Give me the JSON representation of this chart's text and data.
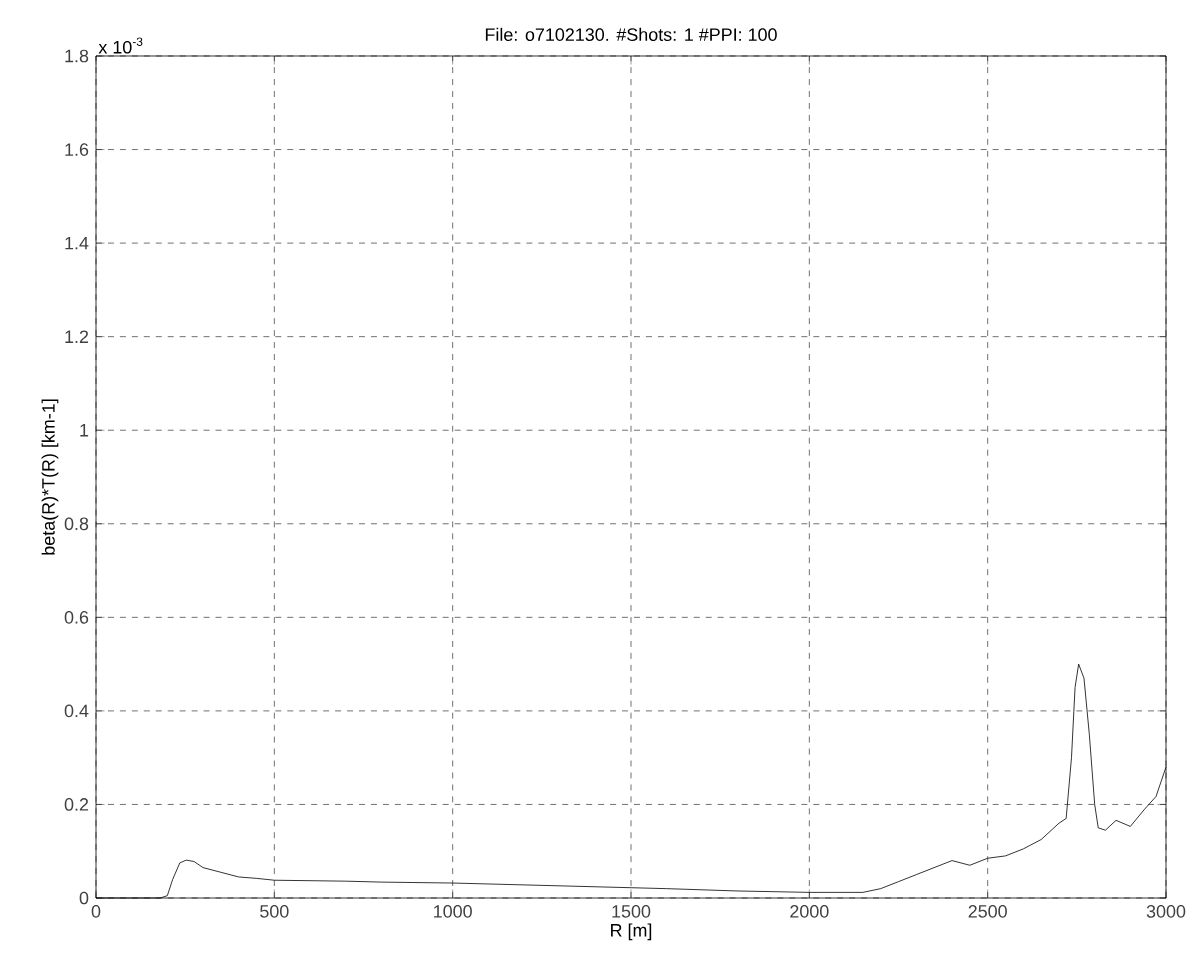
{
  "chart_data": {
    "type": "line",
    "title": "File: o7102130. #Shots: 1 #PPI: 100",
    "xlabel": "R [m]",
    "ylabel": "beta(R)*T(R) [km-1]",
    "annotations": [
      "x 10$^{-3}$"
    ],
    "x": [
      0,
      180,
      200,
      215,
      235,
      253,
      275,
      300,
      350,
      400,
      450,
      500,
      700,
      800,
      1000,
      1200,
      1500,
      1600,
      1800,
      2000,
      2150,
      2200,
      2250,
      2300,
      2350,
      2400,
      2450,
      2500,
      2550,
      2600,
      2650,
      2700,
      2720,
      2735,
      2745,
      2755,
      2770,
      2785,
      2800,
      2810,
      2830,
      2860,
      2900,
      2940,
      2972,
      3000
    ],
    "series": [
      {
        "color": "#000000",
        "values": [
          0,
          0,
          0.005,
          0.04,
          0.075,
          0.081,
          0.078,
          0.065,
          0.055,
          0.045,
          0.042,
          0.038,
          0.036,
          0.034,
          0.032,
          0.028,
          0.022,
          0.02,
          0.015,
          0.012,
          0.012,
          0.02,
          0.035,
          0.05,
          0.065,
          0.08,
          0.07,
          0.085,
          0.09,
          0.105,
          0.125,
          0.16,
          0.17,
          0.3,
          0.45,
          0.5,
          0.47,
          0.35,
          0.2,
          0.15,
          0.145,
          0.166,
          0.153,
          0.19,
          0.217,
          0.28
        ]
      }
    ],
    "xlim": [
      0,
      3000
    ],
    "ylim": [
      0,
      1.8
    ],
    "xticks": [
      0,
      500,
      1000,
      1500,
      2000,
      2500,
      3000
    ],
    "yticks": [
      0,
      0.2,
      0.4,
      0.6,
      0.8,
      1,
      1.2,
      1.4,
      1.6,
      1.8
    ],
    "grid": true,
    "line_style": "solid",
    "marker": "none"
  }
}
